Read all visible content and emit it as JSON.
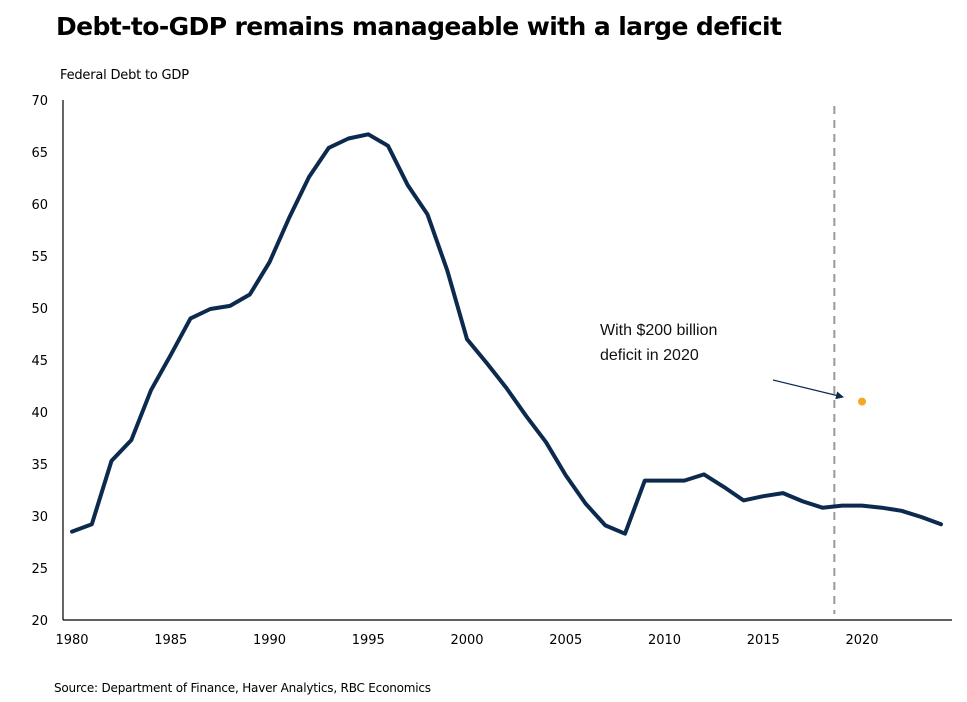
{
  "header": {
    "title": "Debt-to-GDP remains manageable with a large deficit",
    "y_axis_label": "Federal Debt to GDP"
  },
  "footer": {
    "source": "Source: Department of Finance, Haver Analytics, RBC Economics"
  },
  "colors": {
    "line": "#0b2a4e",
    "marker": "#f5a623",
    "dashed": "#9a9a9a",
    "axis": "#000000"
  },
  "chart_data": {
    "type": "line",
    "title": "Debt-to-GDP remains manageable with a large deficit",
    "xlabel": "",
    "ylabel": "Federal Debt to GDP",
    "xlim": [
      1979.5,
      2024.5
    ],
    "ylim": [
      20,
      70
    ],
    "yticks": [
      20,
      25,
      30,
      35,
      40,
      45,
      50,
      55,
      60,
      65,
      70
    ],
    "xticks": [
      1980,
      1985,
      1990,
      1995,
      2000,
      2005,
      2010,
      2015,
      2020
    ],
    "grid": false,
    "legend": "none",
    "series": [
      {
        "name": "Federal Debt to GDP",
        "x": [
          1980,
          1981,
          1982,
          1983,
          1984,
          1985,
          1986,
          1987,
          1988,
          1989,
          1990,
          1991,
          1992,
          1993,
          1994,
          1995,
          1996,
          1997,
          1998,
          1999,
          2000,
          2001,
          2002,
          2003,
          2004,
          2005,
          2006,
          2007,
          2008,
          2009,
          2010,
          2011,
          2012,
          2013,
          2014,
          2015,
          2016,
          2017,
          2018,
          2019,
          2020,
          2021,
          2022,
          2023,
          2024
        ],
        "values": [
          28.5,
          29.2,
          35.3,
          37.3,
          42.1,
          45.5,
          49.0,
          49.9,
          50.2,
          51.3,
          54.4,
          58.7,
          62.6,
          65.4,
          66.3,
          66.7,
          65.6,
          61.8,
          59.0,
          53.6,
          47.0,
          44.7,
          42.3,
          39.6,
          37.1,
          33.9,
          31.2,
          29.1,
          28.3,
          33.4,
          33.4,
          33.4,
          34.0,
          32.8,
          31.5,
          31.9,
          32.2,
          31.4,
          30.8,
          31.0,
          31.0,
          30.8,
          30.5,
          29.9,
          29.2
        ]
      },
      {
        "name": "With $200 billion deficit in 2020",
        "x": [
          2020
        ],
        "values": [
          41.0
        ]
      }
    ],
    "vertical_reference_line": {
      "x": 2018.6,
      "style": "dashed"
    },
    "annotations": [
      {
        "text_lines": [
          "With $200 billion",
          "deficit in 2020"
        ],
        "points_to": {
          "x": 2019,
          "y": 41.5
        }
      }
    ]
  }
}
